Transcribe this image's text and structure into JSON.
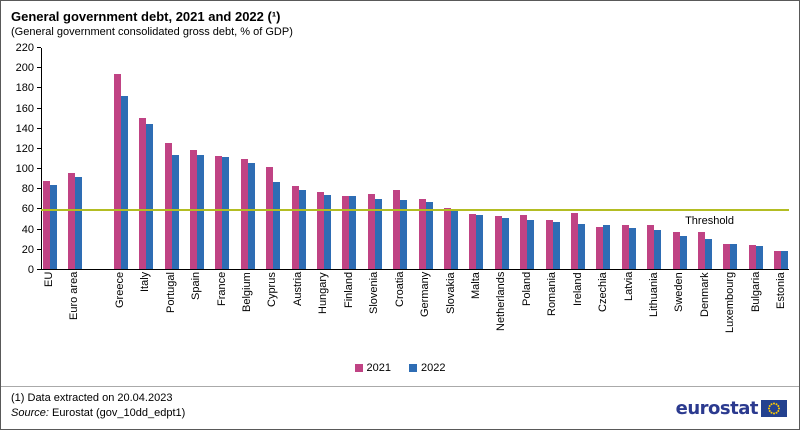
{
  "title": "General government debt, 2021 and 2022 (¹)",
  "subtitle": "(General government  consolidated gross debt, % of GDP)",
  "footnote": "(1) Data extracted on 20.04.2023",
  "source": {
    "label": "Source:",
    "text": " Eurostat (gov_10dd_edpt1)"
  },
  "logo": {
    "text": "eurostat"
  },
  "chart_data": {
    "type": "bar",
    "title": "General government debt, 2021 and 2022",
    "xlabel": "",
    "ylabel": "% of GDP",
    "ylim": [
      0,
      220
    ],
    "ytick_step": 20,
    "grid": false,
    "legend_position": "bottom",
    "gap_after_index": 1,
    "threshold": {
      "value": 60,
      "label": "Threshold",
      "color": "#b3bd23"
    },
    "categories": [
      "EU",
      "Euro area",
      "Greece",
      "Italy",
      "Portugal",
      "Spain",
      "France",
      "Belgium",
      "Cyprus",
      "Austria",
      "Hungary",
      "Finland",
      "Slovenia",
      "Croatia",
      "Germany",
      "Slovakia",
      "Malta",
      "Netherlands",
      "Poland",
      "Romania",
      "Ireland",
      "Czechia",
      "Latvia",
      "Lithuania",
      "Sweden",
      "Denmark",
      "Luxembourg",
      "Bulgaria",
      "Estonia"
    ],
    "series": [
      {
        "name": "2021",
        "color": "#c04384",
        "values": [
          87.4,
          95.4,
          194.5,
          149.9,
          125.4,
          118.3,
          112.9,
          109.2,
          101.1,
          82.3,
          76.7,
          72.6,
          74.5,
          78.3,
          69.3,
          61.1,
          54.9,
          52.4,
          53.6,
          48.6,
          55.4,
          42.0,
          43.7,
          43.7,
          36.5,
          36.7,
          24.5,
          23.9,
          17.6
        ]
      },
      {
        "name": "2022",
        "color": "#2e6db4",
        "values": [
          84.0,
          91.5,
          172.6,
          144.4,
          113.9,
          113.2,
          111.6,
          105.1,
          86.5,
          78.4,
          73.3,
          73.0,
          69.9,
          68.4,
          66.3,
          57.8,
          53.4,
          51.0,
          49.1,
          47.3,
          44.7,
          44.1,
          40.8,
          38.4,
          33.0,
          30.1,
          24.6,
          22.9,
          18.4
        ]
      }
    ]
  }
}
